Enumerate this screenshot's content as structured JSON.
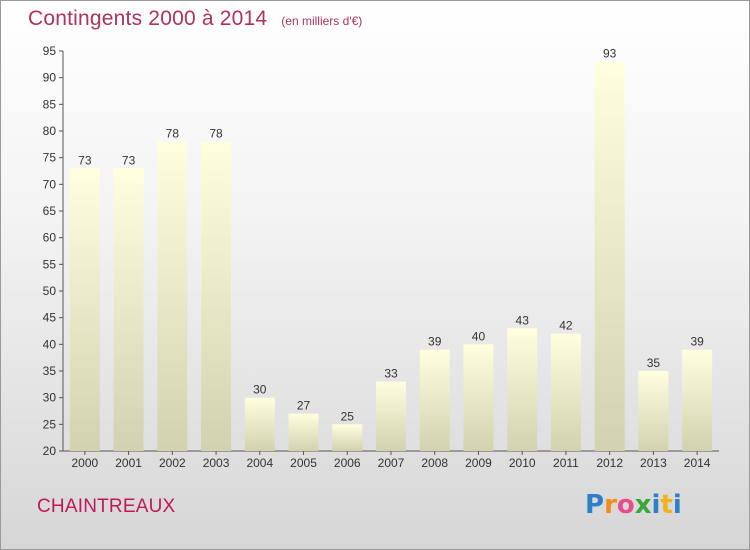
{
  "title": "Contingents 2000 à 2014",
  "subtitle": "(en milliers d'€)",
  "commune": "CHAINTREAUX",
  "logo": {
    "letters": [
      "P",
      "r",
      "o",
      "x",
      "i",
      "t",
      "i"
    ],
    "colors": [
      "#2e7fc8",
      "#f08c1a",
      "#e84c8c",
      "#3aa63a",
      "#2e7fc8",
      "#f0b41a",
      "#2e7fc8"
    ]
  },
  "chart_data": {
    "type": "bar",
    "categories": [
      "2000",
      "2001",
      "2002",
      "2003",
      "2004",
      "2005",
      "2006",
      "2007",
      "2008",
      "2009",
      "2010",
      "2011",
      "2012",
      "2013",
      "2014"
    ],
    "values": [
      73,
      73,
      78,
      78,
      30,
      27,
      25,
      33,
      39,
      40,
      43,
      42,
      93,
      35,
      39
    ],
    "ylim": [
      20,
      95
    ],
    "yticks": [
      20,
      25,
      30,
      35,
      40,
      45,
      50,
      55,
      60,
      65,
      70,
      75,
      80,
      85,
      90,
      95
    ],
    "grid": false,
    "bar_color": "#f3f3c4"
  }
}
